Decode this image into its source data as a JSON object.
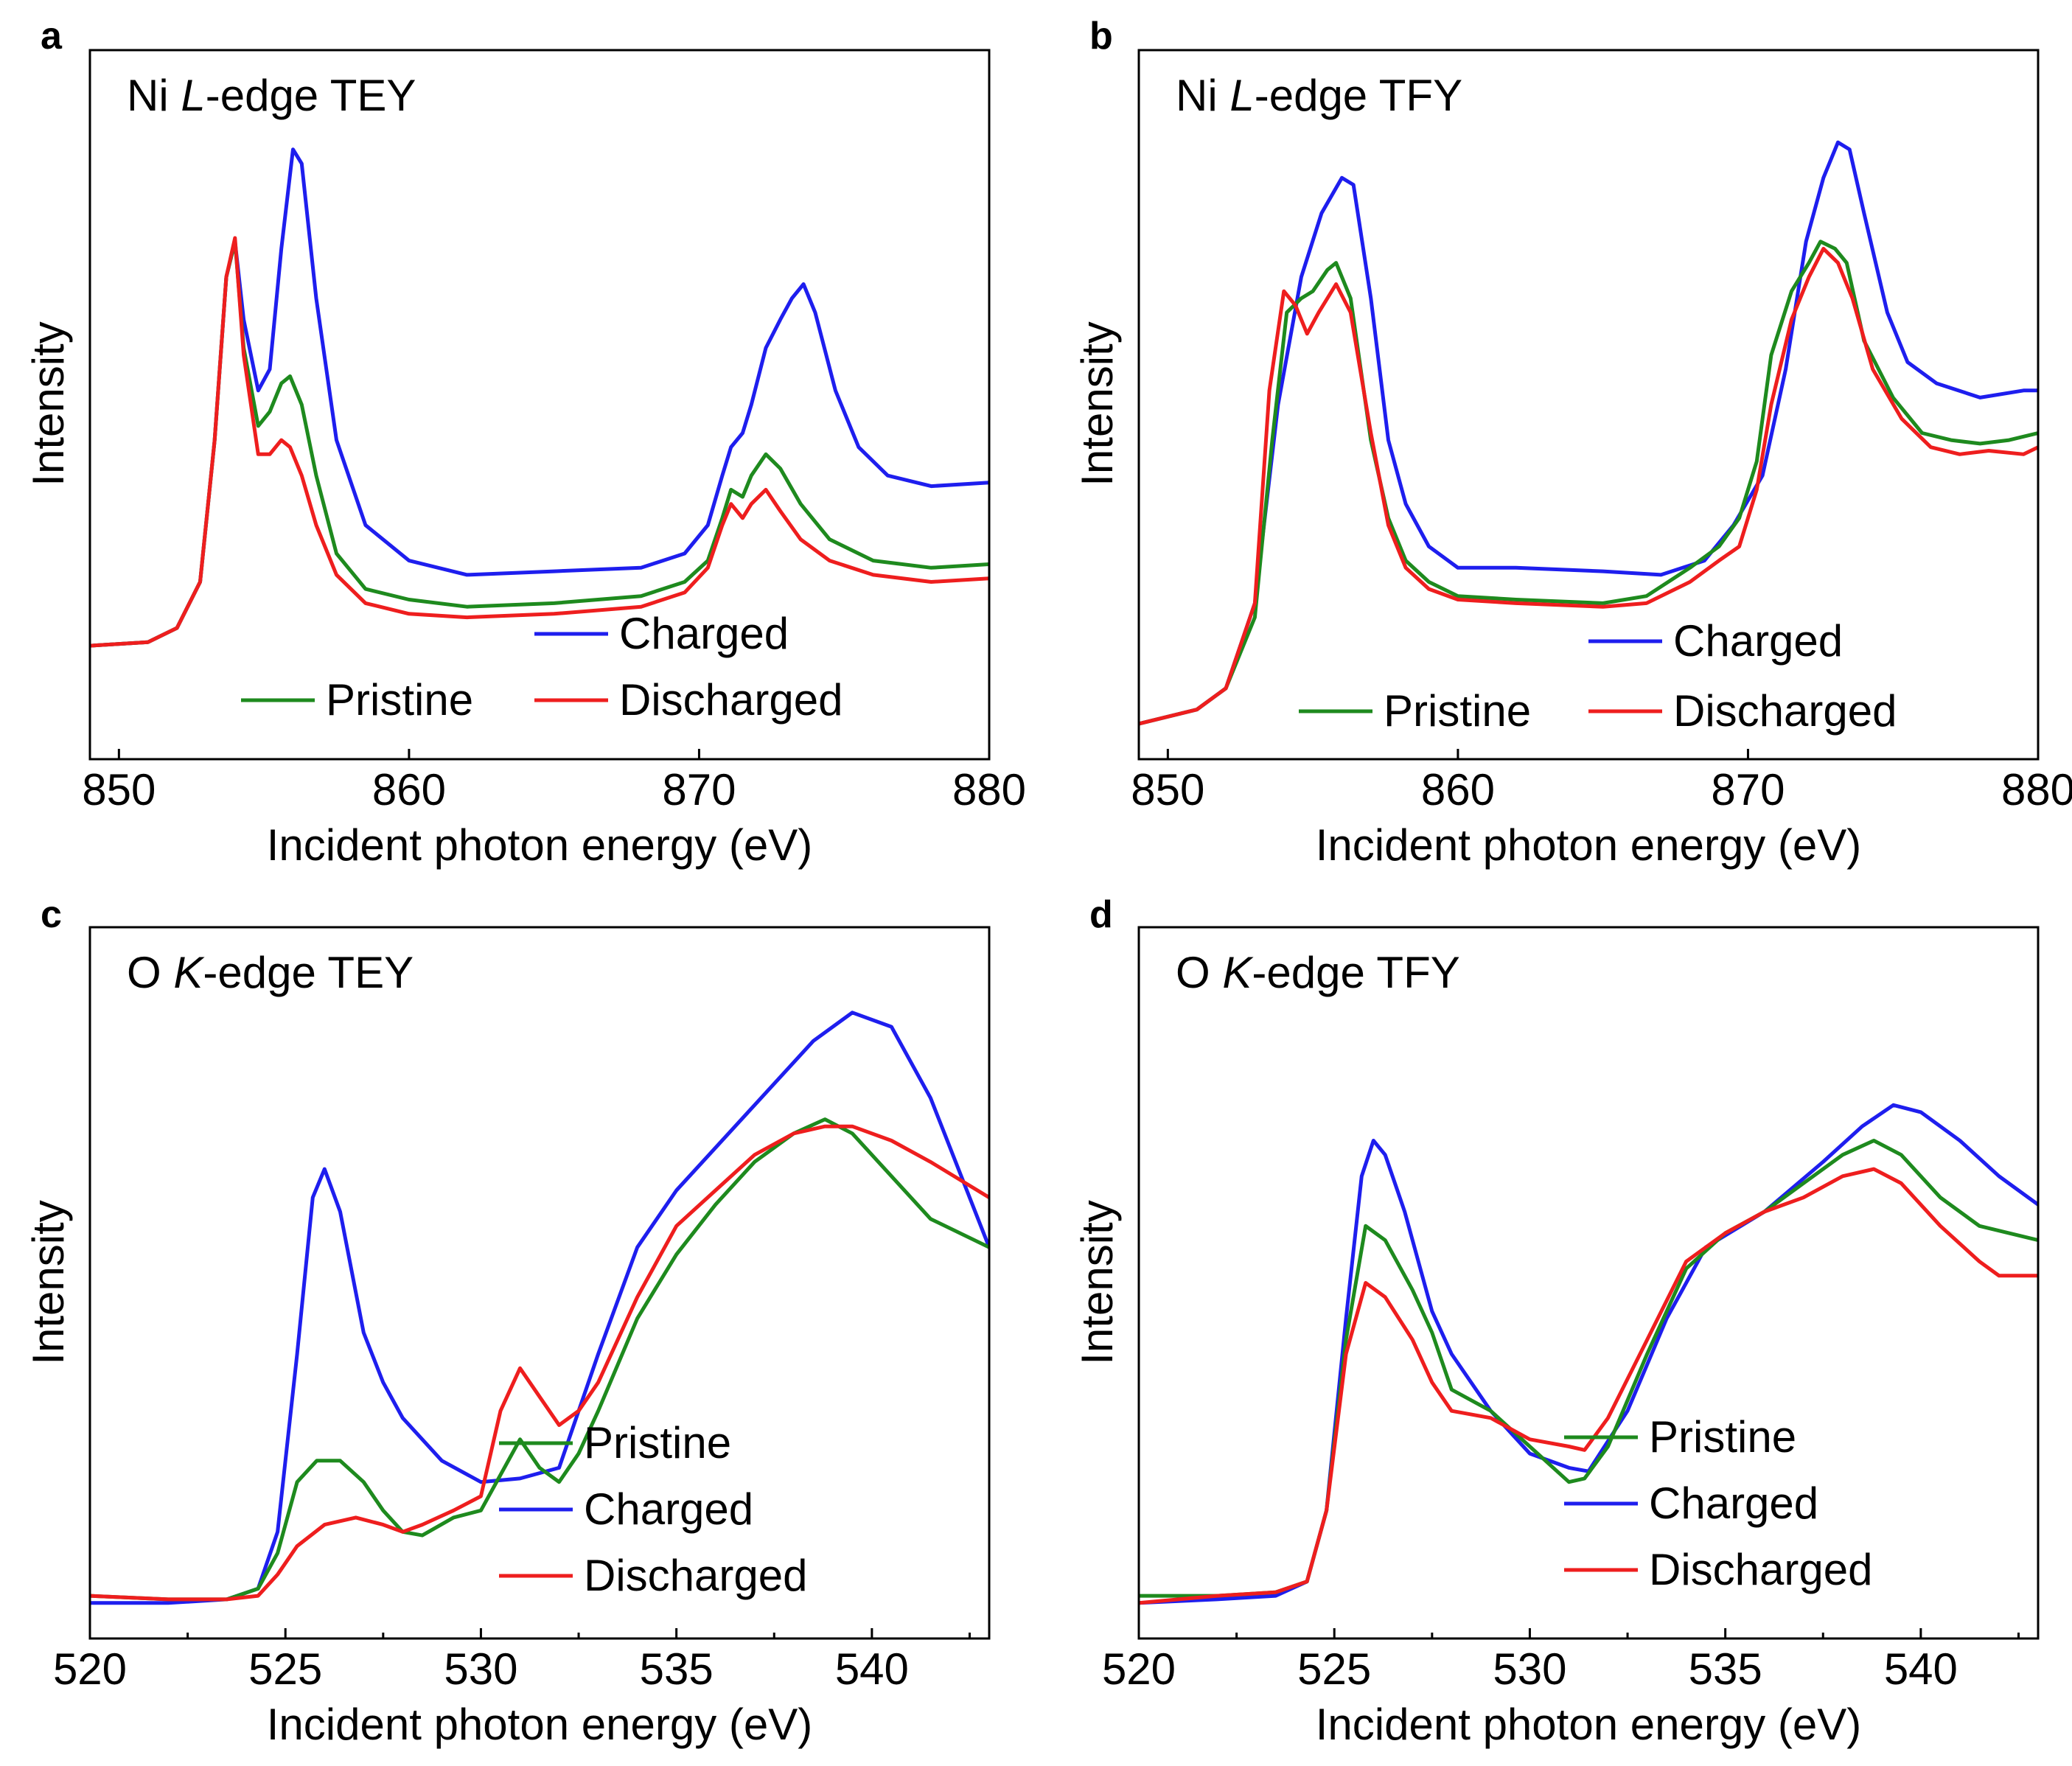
{
  "figure": {
    "y_axis_label": "Intensity",
    "x_axis_label": "Incident photon energy (eV)"
  },
  "colors": {
    "Pristine": "#1e8a1e",
    "Charged": "#1e1eee",
    "Discharged": "#ee1e1e"
  },
  "chart_data": [
    {
      "panel": "a",
      "type": "line",
      "title_prefix": "Ni ",
      "title_italic": "L",
      "title_suffix": "-edge TEY",
      "xlabel": "Incident photon energy (eV)",
      "ylabel": "Intensity",
      "xlim": [
        849,
        880
      ],
      "ylim": [
        0,
        100
      ],
      "xticks": [
        850,
        860,
        870,
        880
      ],
      "xminor": [],
      "legend_order": [
        "Charged",
        "Pristine",
        "Discharged"
      ],
      "legend_placement": "bottom-right",
      "series": [
        {
          "name": "Charged",
          "x": [
            849,
            851,
            852,
            852.8,
            853.3,
            853.7,
            854,
            854.3,
            854.8,
            855.2,
            855.6,
            856,
            856.3,
            856.8,
            857.5,
            858.5,
            860,
            862,
            865,
            868,
            869.5,
            870.3,
            870.8,
            871.1,
            871.5,
            871.8,
            872.3,
            872.8,
            873.2,
            873.6,
            874,
            874.7,
            875.5,
            876.5,
            878,
            880
          ],
          "y": [
            16,
            16.5,
            18.5,
            25,
            45,
            68,
            73,
            62,
            52,
            55,
            72,
            86,
            84,
            65,
            45,
            33,
            28,
            26,
            26.5,
            27,
            29,
            33,
            40,
            44,
            46,
            50,
            58,
            62,
            65,
            67,
            63,
            52,
            44,
            40,
            38.5,
            39
          ]
        },
        {
          "name": "Pristine",
          "x": [
            849,
            851,
            852,
            852.8,
            853.3,
            853.7,
            854,
            854.3,
            854.8,
            855.2,
            855.6,
            855.9,
            856.3,
            856.8,
            857.5,
            858.5,
            860,
            862,
            865,
            868,
            869.5,
            870.3,
            870.8,
            871.1,
            871.5,
            871.8,
            872.3,
            872.8,
            873.5,
            874.5,
            876,
            878,
            880
          ],
          "y": [
            16,
            16.5,
            18.5,
            25,
            45,
            68,
            73,
            58,
            47,
            49,
            53,
            54,
            50,
            40,
            29,
            24,
            22.5,
            21.5,
            22,
            23,
            25,
            28,
            34,
            38,
            37,
            40,
            43,
            41,
            36,
            31,
            28,
            27,
            27.5
          ]
        },
        {
          "name": "Discharged",
          "x": [
            849,
            851,
            852,
            852.8,
            853.3,
            853.7,
            854,
            854.3,
            854.8,
            855.2,
            855.6,
            855.9,
            856.3,
            856.8,
            857.5,
            858.5,
            860,
            862,
            865,
            868,
            869.5,
            870.3,
            870.8,
            871.1,
            871.5,
            871.8,
            872.3,
            872.8,
            873.5,
            874.5,
            876,
            878,
            880
          ],
          "y": [
            16,
            16.5,
            18.5,
            25,
            45,
            68,
            73.5,
            57,
            43,
            43,
            45,
            44,
            40,
            33,
            26,
            22,
            20.5,
            20,
            20.5,
            21.5,
            23.5,
            27,
            33,
            36,
            34,
            36,
            38,
            35,
            31,
            28,
            26,
            25,
            25.5
          ]
        }
      ]
    },
    {
      "panel": "b",
      "type": "line",
      "title_prefix": "Ni ",
      "title_italic": "L",
      "title_suffix": "-edge TFY",
      "xlabel": "Incident photon energy (eV)",
      "ylabel": "Intensity",
      "xlim": [
        849,
        880
      ],
      "ylim": [
        0,
        100
      ],
      "xticks": [
        850,
        860,
        870,
        880
      ],
      "xminor": [],
      "legend_order": [
        "Charged",
        "Pristine",
        "Discharged"
      ],
      "legend_placement": "bottom-right",
      "series": [
        {
          "name": "Charged",
          "x": [
            849,
            851,
            852,
            853,
            853.8,
            854.6,
            855.3,
            856,
            856.4,
            857,
            857.6,
            858.2,
            859,
            860,
            862,
            865,
            867,
            868.5,
            869.5,
            870.5,
            871.3,
            872,
            872.6,
            873.1,
            873.5,
            874,
            874.8,
            875.5,
            876.5,
            878,
            879.5,
            880
          ],
          "y": [
            5,
            7,
            10,
            22,
            50,
            68,
            77,
            82,
            81,
            65,
            45,
            36,
            30,
            27,
            27,
            26.5,
            26,
            28,
            33,
            40,
            55,
            73,
            82,
            87,
            86,
            77,
            63,
            56,
            53,
            51,
            52,
            52
          ]
        },
        {
          "name": "Pristine",
          "x": [
            849,
            851,
            852,
            853,
            853.6,
            854.1,
            854.6,
            855,
            855.5,
            855.8,
            856.3,
            857,
            857.6,
            858.2,
            859,
            860,
            862,
            865,
            866.5,
            868,
            869,
            869.7,
            870.3,
            870.8,
            871.5,
            872.1,
            872.5,
            873,
            873.4,
            874,
            875,
            876,
            877,
            878,
            879,
            880
          ],
          "y": [
            5,
            7,
            10,
            20,
            45,
            63,
            65,
            66,
            69,
            70,
            65,
            45,
            34,
            28,
            25,
            23,
            22.5,
            22,
            23,
            27,
            30,
            34,
            42,
            57,
            66,
            70,
            73,
            72,
            70,
            59,
            51,
            46,
            45,
            44.5,
            45,
            46
          ]
        },
        {
          "name": "Discharged",
          "x": [
            849,
            851,
            852,
            853,
            853.5,
            854,
            854.4,
            854.8,
            855.2,
            855.8,
            856.3,
            857,
            857.6,
            858.2,
            859,
            860,
            862,
            865,
            866.5,
            868,
            869,
            869.7,
            870.3,
            870.8,
            871.5,
            872.1,
            872.6,
            873.1,
            873.6,
            874.3,
            875.3,
            876.3,
            877.3,
            878.3,
            879.5,
            880
          ],
          "y": [
            5,
            7,
            10,
            22,
            52,
            66,
            64,
            60,
            63,
            67,
            63,
            46,
            33,
            27,
            24,
            22.5,
            22,
            21.5,
            22,
            25,
            28,
            30,
            38,
            50,
            62,
            68,
            72,
            70,
            65,
            55,
            48,
            44,
            43,
            43.5,
            43,
            44
          ]
        }
      ]
    },
    {
      "panel": "c",
      "type": "line",
      "title_prefix": "O ",
      "title_italic": "K",
      "title_suffix": "-edge TEY",
      "xlabel": "Incident photon energy (eV)",
      "ylabel": "Intensity",
      "xlim": [
        520,
        543
      ],
      "ylim": [
        0,
        100
      ],
      "xticks": [
        520,
        525,
        530,
        535,
        540
      ],
      "xminor": [
        522.5,
        527.5,
        532.5,
        537.5,
        542.5
      ],
      "legend_order": [
        "Pristine",
        "Charged",
        "Discharged"
      ],
      "legend_placement": "bottom-right",
      "series": [
        {
          "name": "Charged",
          "x": [
            520,
            522,
            523.5,
            524.3,
            524.8,
            525.3,
            525.7,
            526,
            526.4,
            527,
            527.5,
            528,
            529,
            530,
            531,
            532,
            533,
            534,
            535,
            537,
            538.5,
            539.5,
            540.5,
            541.5,
            543
          ],
          "y": [
            5,
            5,
            5.5,
            7,
            15,
            40,
            62,
            66,
            60,
            43,
            36,
            31,
            25,
            22,
            22.5,
            24,
            40,
            55,
            63,
            75,
            84,
            88,
            86,
            76,
            55
          ]
        },
        {
          "name": "Pristine",
          "x": [
            520,
            522,
            523.5,
            524.3,
            524.8,
            525.3,
            525.8,
            526.4,
            527,
            527.5,
            528,
            528.5,
            529.3,
            530,
            530.5,
            531,
            531.5,
            532,
            532.5,
            533,
            534,
            535,
            536,
            537,
            538,
            538.8,
            539.5,
            540.5,
            541.5,
            543
          ],
          "y": [
            6,
            5.5,
            5.5,
            7,
            12,
            22,
            25,
            25,
            22,
            18,
            15,
            14.5,
            17,
            18,
            23,
            28,
            24,
            22,
            26,
            32,
            45,
            54,
            61,
            67,
            71,
            73,
            71,
            65,
            59,
            55
          ]
        },
        {
          "name": "Discharged",
          "x": [
            520,
            522,
            523.5,
            524.3,
            524.8,
            525.3,
            526,
            526.8,
            527.5,
            528,
            528.5,
            529.3,
            530,
            530.5,
            531,
            531.5,
            532,
            532.5,
            533,
            534,
            535,
            536,
            537,
            538,
            538.8,
            539.5,
            540.5,
            541.5,
            543
          ],
          "y": [
            6,
            5.5,
            5.5,
            6,
            9,
            13,
            16,
            17,
            16,
            15,
            16,
            18,
            20,
            32,
            38,
            34,
            30,
            32,
            36,
            48,
            58,
            63,
            68,
            71,
            72,
            72,
            70,
            67,
            62
          ]
        }
      ]
    },
    {
      "panel": "d",
      "type": "line",
      "title_prefix": "O ",
      "title_italic": "K",
      "title_suffix": "-edge TFY",
      "xlabel": "Incident photon energy (eV)",
      "ylabel": "Intensity",
      "xlim": [
        520,
        543
      ],
      "ylim": [
        0,
        100
      ],
      "xticks": [
        520,
        525,
        530,
        535,
        540
      ],
      "xminor": [
        522.5,
        527.5,
        532.5,
        537.5,
        542.5
      ],
      "legend_order": [
        "Pristine",
        "Charged",
        "Discharged"
      ],
      "legend_placement": "bottom-right",
      "series": [
        {
          "name": "Charged",
          "x": [
            520,
            522,
            523.5,
            524.3,
            524.8,
            525.3,
            525.7,
            526,
            526.3,
            526.8,
            527.5,
            528,
            529,
            530,
            531,
            531.5,
            532.5,
            533.5,
            534.5,
            536,
            537.5,
            538.5,
            539.3,
            540,
            541,
            542,
            543
          ],
          "y": [
            5,
            5.5,
            6,
            8,
            18,
            45,
            65,
            70,
            68,
            60,
            46,
            40,
            32,
            26,
            24,
            23.5,
            32,
            45,
            55,
            60,
            67,
            72,
            75,
            74,
            70,
            65,
            61
          ]
        },
        {
          "name": "Pristine",
          "x": [
            520,
            522,
            523.5,
            524.3,
            524.8,
            525.3,
            525.8,
            526.3,
            527,
            527.5,
            528,
            529,
            530,
            531,
            531.4,
            532,
            533,
            534,
            535,
            536,
            537,
            538,
            538.8,
            539.5,
            540.5,
            541.5,
            543
          ],
          "y": [
            6,
            6,
            6.5,
            8,
            18,
            42,
            58,
            56,
            49,
            43,
            35,
            32,
            27,
            22,
            22.5,
            27,
            40,
            52,
            57,
            60,
            64,
            68,
            70,
            68,
            62,
            58,
            56
          ]
        },
        {
          "name": "Discharged",
          "x": [
            520,
            522,
            523.5,
            524.3,
            524.8,
            525.3,
            525.8,
            526.3,
            527,
            527.5,
            528,
            529,
            530,
            531,
            531.4,
            532,
            533,
            534,
            535,
            536,
            537,
            538,
            538.8,
            539.5,
            540.5,
            541.5,
            542,
            543
          ],
          "y": [
            5,
            6,
            6.5,
            8,
            18,
            40,
            50,
            48,
            42,
            36,
            32,
            31,
            28,
            27,
            26.5,
            31,
            42,
            53,
            57,
            60,
            62,
            65,
            66,
            64,
            58,
            53,
            51,
            51
          ]
        }
      ]
    }
  ]
}
